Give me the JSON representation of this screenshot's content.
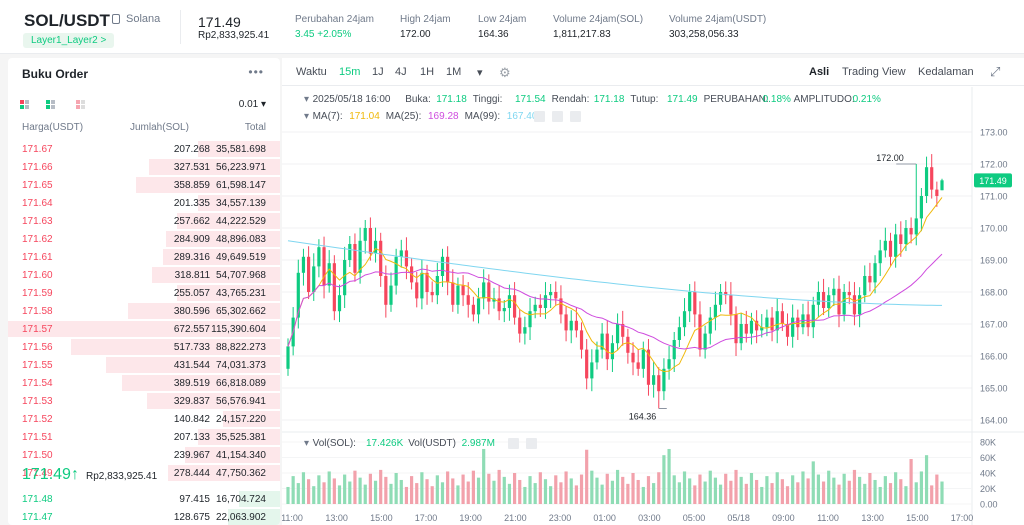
{
  "header": {
    "pair": "SOL/USDT",
    "chain": "Solana",
    "tag": "Layer1_Layer2 >",
    "last_price": "171.49",
    "last_price_idr": "Rp2,833,925.41",
    "stats": [
      {
        "label": "Perubahan 24jam",
        "value": "3.45 +2.05%",
        "color": "green"
      },
      {
        "label": "High 24jam",
        "value": "172.00",
        "color": ""
      },
      {
        "label": "Low 24jam",
        "value": "164.36",
        "color": ""
      },
      {
        "label": "Volume 24jam(SOL)",
        "value": "1,811,217.83",
        "color": ""
      },
      {
        "label": "Volume 24jam(USDT)",
        "value": "303,258,056.33",
        "color": ""
      }
    ]
  },
  "orderbook": {
    "title": "Buku Order",
    "more": "•••",
    "precision": "0.01 ▾",
    "col_price": "Harga(USDT)",
    "col_amount": "Jumlah(SOL)",
    "col_total": "Total",
    "asks": [
      {
        "price": "171.67",
        "amount": "207.268",
        "total": "35,581.698",
        "depth": 0.3
      },
      {
        "price": "171.66",
        "amount": "327.531",
        "total": "56,223.971",
        "depth": 0.48
      },
      {
        "price": "171.65",
        "amount": "358.859",
        "total": "61,598.147",
        "depth": 0.53
      },
      {
        "price": "171.64",
        "amount": "201.335",
        "total": "34,557.139",
        "depth": 0.3
      },
      {
        "price": "171.63",
        "amount": "257.662",
        "total": "44,222.529",
        "depth": 0.38
      },
      {
        "price": "171.62",
        "amount": "284.909",
        "total": "48,896.083",
        "depth": 0.42
      },
      {
        "price": "171.61",
        "amount": "289.316",
        "total": "49,649.519",
        "depth": 0.43
      },
      {
        "price": "171.60",
        "amount": "318.811",
        "total": "54,707.968",
        "depth": 0.47
      },
      {
        "price": "171.59",
        "amount": "255.057",
        "total": "43,765.231",
        "depth": 0.38
      },
      {
        "price": "171.58",
        "amount": "380.596",
        "total": "65,302.662",
        "depth": 0.56
      },
      {
        "price": "171.57",
        "amount": "672.557",
        "total": "115,390.604",
        "depth": 1.0
      },
      {
        "price": "171.56",
        "amount": "517.733",
        "total": "88,822.273",
        "depth": 0.77
      },
      {
        "price": "171.55",
        "amount": "431.544",
        "total": "74,031.373",
        "depth": 0.64
      },
      {
        "price": "171.54",
        "amount": "389.519",
        "total": "66,818.089",
        "depth": 0.58
      },
      {
        "price": "171.53",
        "amount": "329.837",
        "total": "56,576.941",
        "depth": 0.49
      },
      {
        "price": "171.52",
        "amount": "140.842",
        "total": "24,157.220",
        "depth": 0.21
      },
      {
        "price": "171.51",
        "amount": "207.133",
        "total": "35,525.381",
        "depth": 0.3
      },
      {
        "price": "171.50",
        "amount": "239.967",
        "total": "41,154.340",
        "depth": 0.35
      },
      {
        "price": "171.49",
        "amount": "278.444",
        "total": "47,750.362",
        "depth": 0.41
      }
    ],
    "last_price": "171.49↑",
    "last_price_ref": "Rp2,833,925.41",
    "bids": [
      {
        "price": "171.48",
        "amount": "97.415",
        "total": "16,704.724",
        "depth": 0.15
      },
      {
        "price": "171.47",
        "amount": "128.675",
        "total": "22,063.902",
        "depth": 0.19
      }
    ]
  },
  "chart_toolbar": {
    "left": [
      "Waktu",
      "15m",
      "1J",
      "4J",
      "1H",
      "1M",
      "▾"
    ],
    "active": "15m",
    "right": [
      "Asli",
      "Trading View",
      "Kedalaman"
    ]
  },
  "chart_info": {
    "ohlc_prefix": "2025/05/18 16:00",
    "open_label": "Buka:",
    "open": "171.18",
    "high_label": "Tinggi:",
    "high": "171.54",
    "low_label": "Rendah:",
    "low": "171.18",
    "close_label": "Tutup:",
    "close": "171.49",
    "change_label": "PERUBAHAN:",
    "change": "0.18%",
    "amp_label": "AMPLITUDO:",
    "amp": "0.21%",
    "ma7_label": "MA(7):",
    "ma7": "171.04",
    "ma25_label": "MA(25):",
    "ma25": "169.28",
    "ma99_label": "MA(99):",
    "ma99": "167.40",
    "vol_label": "Vol(SOL):",
    "vol_sol": "17.426K",
    "volu_label": "Vol(USDT)",
    "vol_usdt": "2.987M",
    "high_marker": "172.00",
    "low_marker": "164.36",
    "last_tag": "171.49"
  },
  "chart_data": {
    "type": "candlestick",
    "price_ticks": [
      "173.00",
      "172.00",
      "171.00",
      "170.00",
      "169.00",
      "168.00",
      "167.00",
      "166.00",
      "165.00",
      "164.00"
    ],
    "volume_ticks": [
      "80K",
      "60K",
      "40K",
      "20K",
      "0.00"
    ],
    "x_ticks": [
      "11:00",
      "13:00",
      "15:00",
      "17:00",
      "19:00",
      "21:00",
      "23:00",
      "01:00",
      "03:00",
      "05:00",
      "05/18",
      "09:00",
      "11:00",
      "13:00",
      "15:00",
      "17:00"
    ],
    "colors": {
      "up": "#0ecb81",
      "down": "#f6465d",
      "ma7": "#f0b90b",
      "ma25": "#cf4cde",
      "ma99": "#7fd6f0"
    }
  }
}
